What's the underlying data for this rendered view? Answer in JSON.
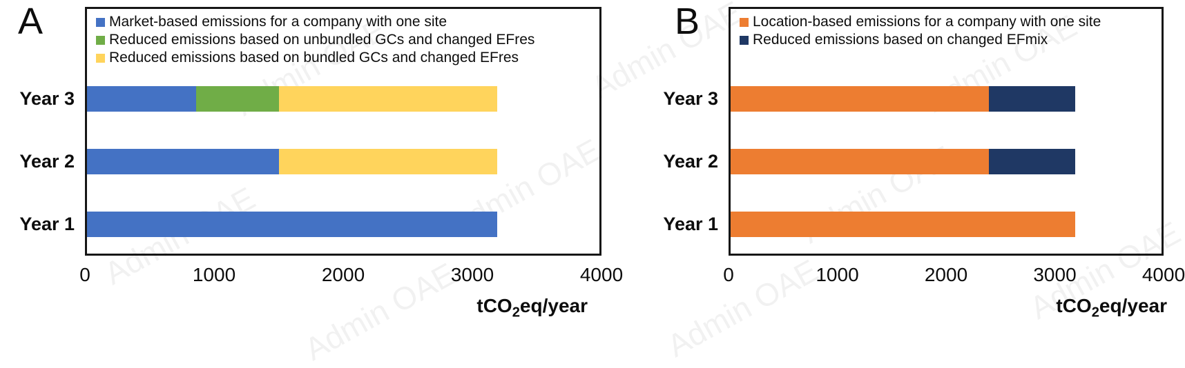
{
  "watermark": {
    "text": "Admin OAE"
  },
  "axis": {
    "label_pre": "tCO",
    "label_sub": "2",
    "label_post": "eq/year",
    "full_label": "tCO₂eq/year"
  },
  "chart_data": [
    {
      "type": "bar",
      "orientation": "horizontal",
      "stacked": true,
      "panel_letter": "A",
      "categories": [
        "Year 3",
        "Year 2",
        "Year 1"
      ],
      "series": [
        {
          "name": "Market-based emissions for a company with one site",
          "color": "#4472C4",
          "values": [
            850,
            1500,
            3200
          ]
        },
        {
          "name": "Reduced emissions based on unbundled GCs and changed EFres",
          "color": "#70AD47",
          "values": [
            650,
            0,
            0
          ]
        },
        {
          "name": "Reduced emissions based on bundled GCs and changed EFres",
          "color": "#FFD45C",
          "values": [
            1700,
            1700,
            0
          ]
        }
      ],
      "xlabel": "tCO₂eq/year",
      "xlim": [
        0,
        4000
      ],
      "xticks": [
        "0",
        "1000",
        "2000",
        "3000",
        "4000"
      ],
      "legend_position": "top-left-inside",
      "grid": false
    },
    {
      "type": "bar",
      "orientation": "horizontal",
      "stacked": true,
      "panel_letter": "B",
      "categories": [
        "Year 3",
        "Year 2",
        "Year 1"
      ],
      "series": [
        {
          "name": "Location-based emissions for a company with one site",
          "color": "#ED7D31",
          "values": [
            2400,
            2400,
            3200
          ]
        },
        {
          "name": "Reduced emissions based on changed EFmix",
          "color": "#1F3864",
          "values": [
            800,
            800,
            0
          ]
        }
      ],
      "xlabel": "tCO₂eq/year",
      "xlim": [
        0,
        4000
      ],
      "xticks": [
        "0",
        "1000",
        "2000",
        "3000",
        "4000"
      ],
      "legend_position": "top-left-inside",
      "grid": false
    }
  ]
}
